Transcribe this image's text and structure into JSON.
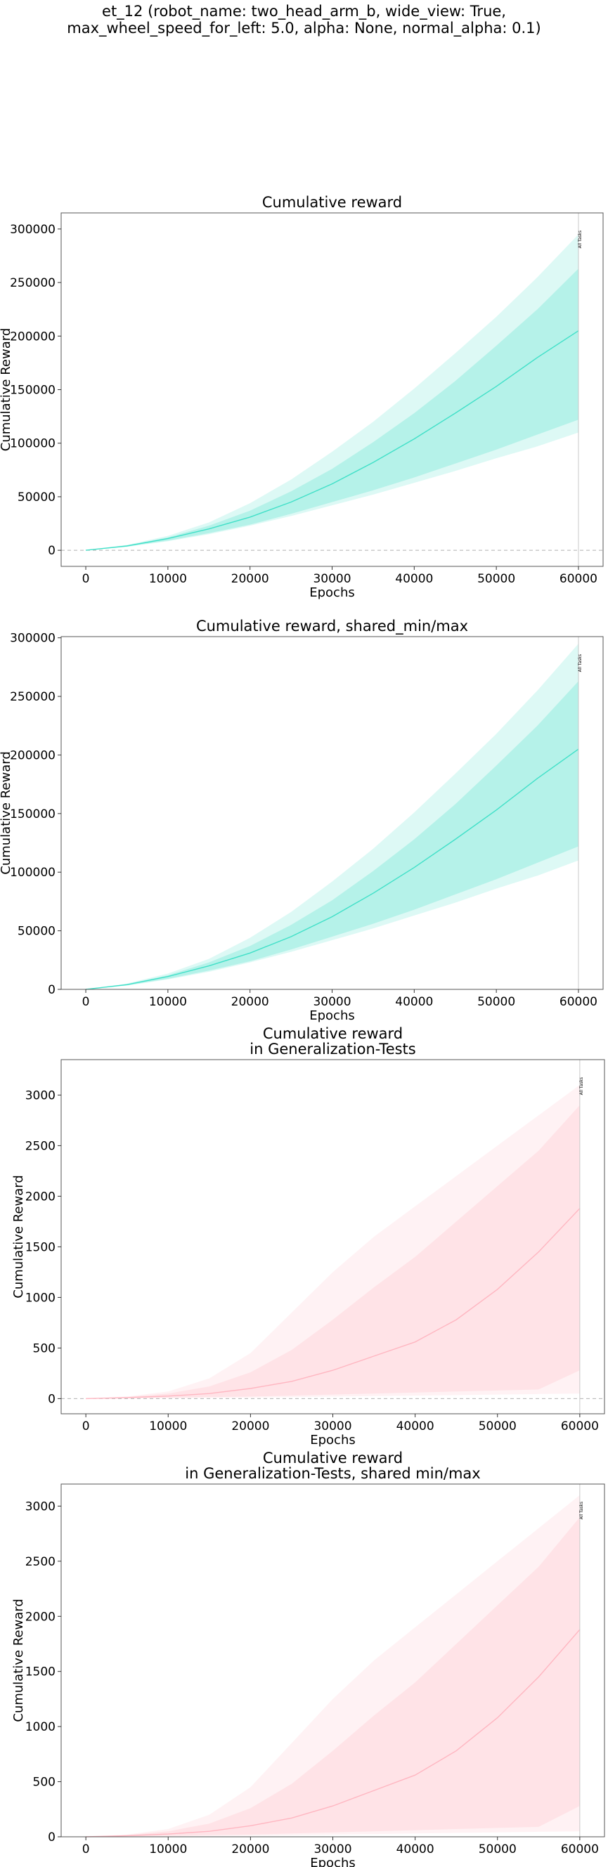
{
  "figure": {
    "title_line1": "et_12 (robot_name: two_head_arm_b, wide_view: True,",
    "title_line2": "max_wheel_speed_for_left: 5.0, alpha: None, normal_alpha: 0.1)"
  },
  "chart_data": [
    {
      "type": "line",
      "title": [
        "Cumulative reward"
      ],
      "xlabel": "Epochs",
      "ylabel": "Cumulative Reward",
      "xlim": [
        -3000,
        63000
      ],
      "ylim": [
        -15000,
        315000
      ],
      "xticks": [
        0,
        10000,
        20000,
        30000,
        40000,
        50000,
        60000
      ],
      "yticks": [
        0,
        50000,
        100000,
        150000,
        200000,
        250000,
        300000
      ],
      "zero_line": true,
      "vline": {
        "x": 60000,
        "label": "All Tasks"
      },
      "color": "#40e0c8",
      "series": [
        {
          "x": [
            0,
            5000,
            10000,
            15000,
            20000,
            25000,
            30000,
            35000,
            40000,
            45000,
            50000,
            55000,
            60000
          ],
          "values": [
            0,
            4000,
            11000,
            20000,
            31000,
            45000,
            62000,
            82000,
            104000,
            128000,
            153000,
            180000,
            205000
          ],
          "q_low": [
            0,
            3500,
            9000,
            16000,
            24000,
            34000,
            45000,
            56000,
            68000,
            81000,
            94000,
            108000,
            122000
          ],
          "q_high": [
            0,
            4500,
            12000,
            23000,
            37000,
            55000,
            76000,
            101000,
            128000,
            158000,
            191000,
            225000,
            263000
          ],
          "min": [
            0,
            3200,
            8500,
            15000,
            23000,
            32000,
            42000,
            52000,
            63000,
            74000,
            86000,
            97000,
            110000
          ],
          "max": [
            0,
            5000,
            13500,
            26000,
            44000,
            66000,
            92000,
            120000,
            151000,
            184000,
            218000,
            255000,
            295000
          ]
        }
      ]
    },
    {
      "type": "line",
      "title": [
        "Cumulative reward, shared_min/max"
      ],
      "xlabel": "Epochs",
      "ylabel": "Cumulative Reward",
      "xlim": [
        -3000,
        63000
      ],
      "ylim": [
        0,
        301000
      ],
      "xticks": [
        0,
        10000,
        20000,
        30000,
        40000,
        50000,
        60000
      ],
      "yticks": [
        0,
        50000,
        100000,
        150000,
        200000,
        250000,
        300000
      ],
      "zero_line": false,
      "vline": {
        "x": 60000,
        "label": "All Tasks"
      },
      "color": "#40e0c8",
      "series": [
        {
          "x": [
            0,
            5000,
            10000,
            15000,
            20000,
            25000,
            30000,
            35000,
            40000,
            45000,
            50000,
            55000,
            60000
          ],
          "values": [
            0,
            4000,
            11000,
            20000,
            31000,
            45000,
            62000,
            82000,
            104000,
            128000,
            153000,
            180000,
            205000
          ],
          "q_low": [
            0,
            3500,
            9000,
            16000,
            24000,
            34000,
            45000,
            56000,
            68000,
            81000,
            94000,
            108000,
            122000
          ],
          "q_high": [
            0,
            4500,
            12000,
            23000,
            37000,
            55000,
            76000,
            101000,
            128000,
            158000,
            191000,
            225000,
            263000
          ],
          "min": [
            0,
            3200,
            8500,
            15000,
            23000,
            32000,
            42000,
            52000,
            63000,
            74000,
            86000,
            97000,
            110000
          ],
          "max": [
            0,
            5000,
            13500,
            26000,
            44000,
            66000,
            92000,
            120000,
            151000,
            184000,
            218000,
            255000,
            295000
          ]
        }
      ]
    },
    {
      "type": "line",
      "title": [
        "Cumulative reward",
        "in Generalization-Tests"
      ],
      "xlabel": "Epochs",
      "ylabel": "Cumulative Reward",
      "xlim": [
        -3000,
        63000
      ],
      "ylim": [
        -150,
        3350
      ],
      "xticks": [
        0,
        10000,
        20000,
        30000,
        40000,
        50000,
        60000
      ],
      "yticks": [
        0,
        500,
        1000,
        1500,
        2000,
        2500,
        3000
      ],
      "zero_line": true,
      "vline": {
        "x": 60000,
        "label": "All Tasks"
      },
      "color": "#ffb6c1",
      "series": [
        {
          "x": [
            0,
            5000,
            10000,
            15000,
            20000,
            25000,
            30000,
            35000,
            40000,
            45000,
            50000,
            55000,
            60000
          ],
          "values": [
            0,
            10,
            25,
            50,
            100,
            170,
            280,
            420,
            560,
            780,
            1080,
            1450,
            1880
          ],
          "q_low": [
            0,
            5,
            10,
            15,
            20,
            30,
            40,
            50,
            60,
            70,
            80,
            90,
            280
          ],
          "q_high": [
            0,
            15,
            50,
            120,
            260,
            480,
            780,
            1100,
            1400,
            1750,
            2100,
            2450,
            2900
          ],
          "min": [
            0,
            2,
            5,
            8,
            10,
            15,
            20,
            25,
            30,
            35,
            40,
            45,
            50
          ],
          "max": [
            0,
            20,
            70,
            200,
            450,
            850,
            1250,
            1600,
            1900,
            2200,
            2500,
            2800,
            3100
          ]
        }
      ]
    },
    {
      "type": "line",
      "title": [
        "Cumulative reward",
        "in Generalization-Tests, shared min/max"
      ],
      "xlabel": "Epochs",
      "ylabel": "Cumulative Reward",
      "xlim": [
        -3000,
        63000
      ],
      "ylim": [
        0,
        3200
      ],
      "xticks": [
        0,
        10000,
        20000,
        30000,
        40000,
        50000,
        60000
      ],
      "yticks": [
        0,
        500,
        1000,
        1500,
        2000,
        2500,
        3000
      ],
      "zero_line": false,
      "vline": {
        "x": 60000,
        "label": "All Tasks"
      },
      "color": "#ffb6c1",
      "series": [
        {
          "x": [
            0,
            5000,
            10000,
            15000,
            20000,
            25000,
            30000,
            35000,
            40000,
            45000,
            50000,
            55000,
            60000
          ],
          "values": [
            0,
            10,
            25,
            50,
            100,
            170,
            280,
            420,
            560,
            780,
            1080,
            1450,
            1880
          ],
          "q_low": [
            0,
            5,
            10,
            15,
            20,
            30,
            40,
            50,
            60,
            70,
            80,
            90,
            280
          ],
          "q_high": [
            0,
            15,
            50,
            120,
            260,
            480,
            780,
            1100,
            1400,
            1750,
            2100,
            2450,
            2900
          ],
          "min": [
            0,
            2,
            5,
            8,
            10,
            15,
            20,
            25,
            30,
            35,
            40,
            45,
            50
          ],
          "max": [
            0,
            20,
            70,
            200,
            450,
            850,
            1250,
            1600,
            1900,
            2200,
            2500,
            2800,
            3100
          ]
        }
      ]
    }
  ]
}
